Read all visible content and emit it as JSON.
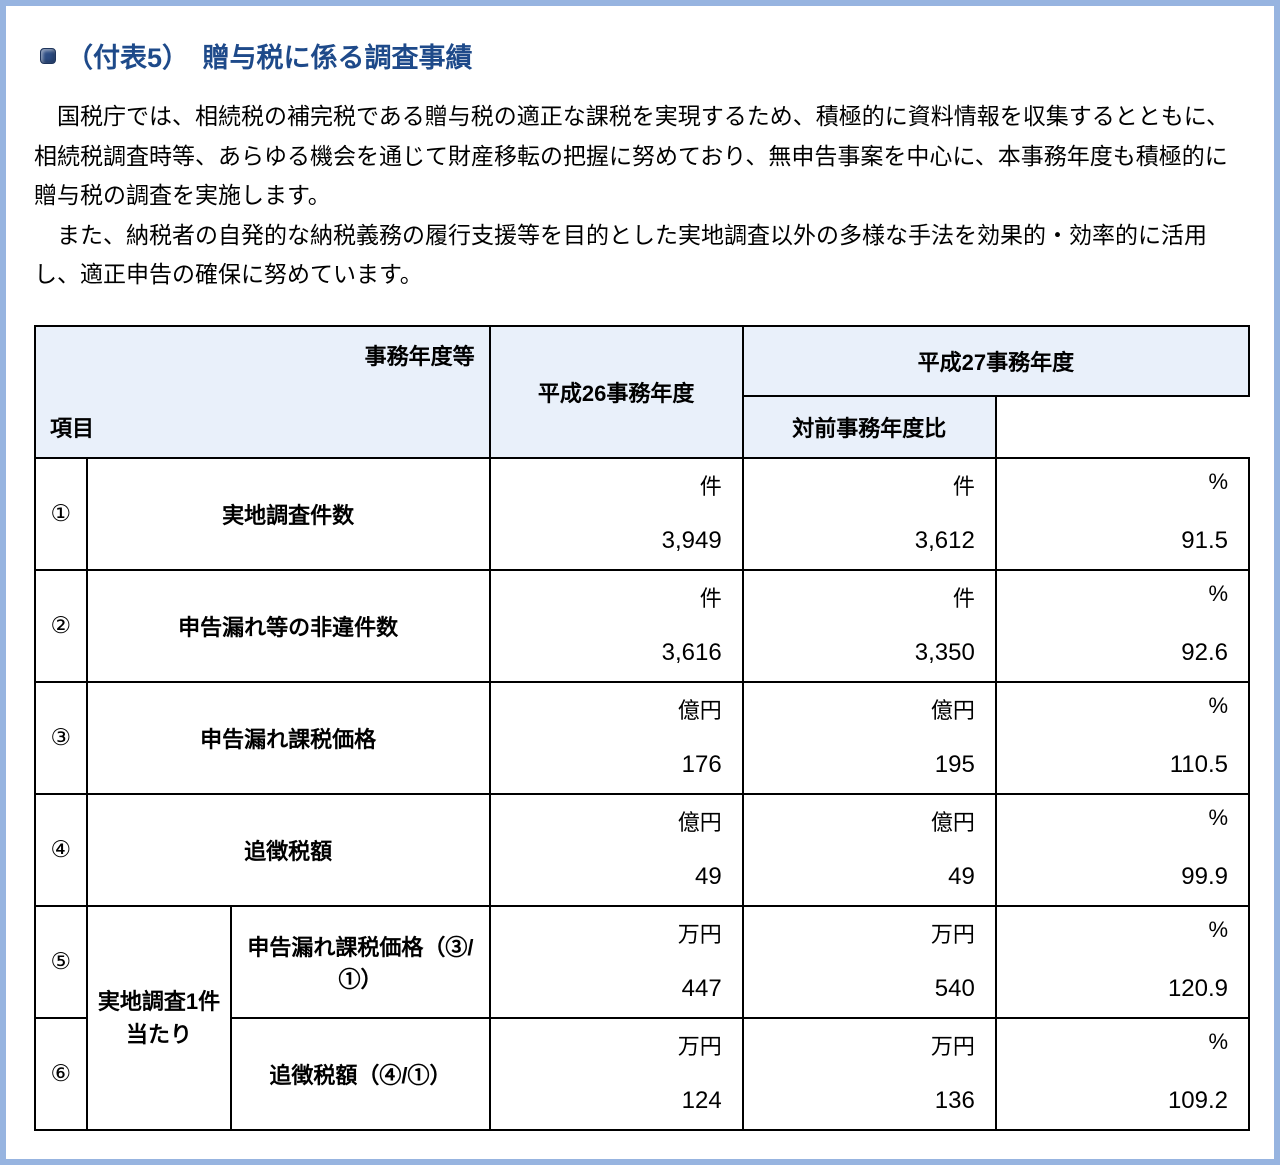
{
  "title": "（付表5）　贈与税に係る調査事績",
  "intro": {
    "p1": "国税庁では、相続税の補完税である贈与税の適正な課税を実現するため、積極的に資料情報を収集するとともに、相続税調査時等、あらゆる機会を通じて財産移転の把握に努めており、無申告事案を中心に、本事務年度も積極的に贈与税の調査を実施します。",
    "p2": "また、納税者の自発的な納税義務の履行支援等を目的とした実地調査以外の多様な手法を効果的・効率的に活用し、適正申告の確保に努めています。"
  },
  "table": {
    "corner_tr": "事務年度等",
    "corner_bl": "項目",
    "col_h26": "平成26事務年度",
    "col_h27": "平成27事務年度",
    "col_ratio": "対前事務年度比",
    "group_label": "実地調査1件当たり",
    "rows": [
      {
        "num": "①",
        "label": "実地調査件数",
        "h26": {
          "unit": "件",
          "val": "3,949"
        },
        "h27": {
          "unit": "件",
          "val": "3,612"
        },
        "ratio": {
          "unit": "%",
          "val": "91.5"
        }
      },
      {
        "num": "②",
        "label": "申告漏れ等の非違件数",
        "h26": {
          "unit": "件",
          "val": "3,616"
        },
        "h27": {
          "unit": "件",
          "val": "3,350"
        },
        "ratio": {
          "unit": "%",
          "val": "92.6"
        }
      },
      {
        "num": "③",
        "label": "申告漏れ課税価格",
        "h26": {
          "unit": "億円",
          "val": "176"
        },
        "h27": {
          "unit": "億円",
          "val": "195"
        },
        "ratio": {
          "unit": "%",
          "val": "110.5"
        }
      },
      {
        "num": "④",
        "label": "追徴税額",
        "h26": {
          "unit": "億円",
          "val": "49"
        },
        "h27": {
          "unit": "億円",
          "val": "49"
        },
        "ratio": {
          "unit": "%",
          "val": "99.9"
        }
      },
      {
        "num": "⑤",
        "label": "申告漏れ課税価格（③/①）",
        "h26": {
          "unit": "万円",
          "val": "447"
        },
        "h27": {
          "unit": "万円",
          "val": "540"
        },
        "ratio": {
          "unit": "%",
          "val": "120.9"
        }
      },
      {
        "num": "⑥",
        "label": "追徴税額（④/①）",
        "h26": {
          "unit": "万円",
          "val": "124"
        },
        "h27": {
          "unit": "万円",
          "val": "136"
        },
        "ratio": {
          "unit": "%",
          "val": "109.2"
        }
      }
    ]
  },
  "styling": {
    "page_border_color": "#97b4e0",
    "header_bg": "#e9f0fa",
    "title_color": "#1e4a8a",
    "border_color": "#000000",
    "body_font_size_pt": 17,
    "title_font_size_pt": 20
  }
}
